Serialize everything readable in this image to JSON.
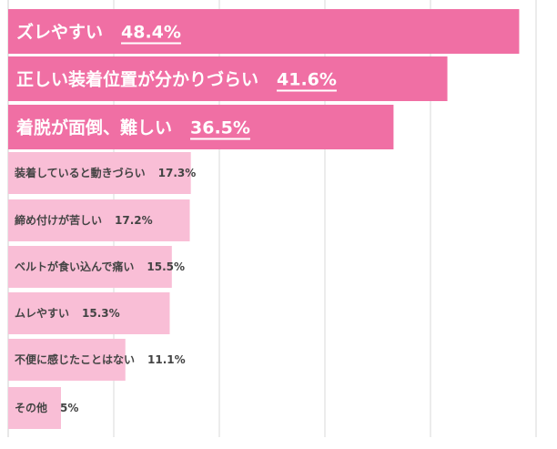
{
  "chart_data": {
    "type": "bar",
    "orientation": "horizontal",
    "categories": [
      "ズレやすい",
      "正しい装着位置が分かりづらい",
      "着脱が面倒、難しい",
      "装着していると動きづらい",
      "締め付けが苦しい",
      "ベルトが食い込んで痛い",
      "ムレやすい",
      "不便に感じたことはない",
      "その他"
    ],
    "values": [
      48.4,
      41.6,
      36.5,
      17.3,
      17.2,
      15.5,
      15.3,
      11.1,
      5
    ],
    "value_labels": [
      "48.4%",
      "41.6%",
      "36.5%",
      "17.3%",
      "17.2%",
      "15.5%",
      "15.3%",
      "11.1%",
      "5%"
    ],
    "highlight_top": 3,
    "xlim": [
      0,
      50
    ],
    "grid": true,
    "colors": {
      "highlight": "#f06fa4",
      "normal": "#f9bed6",
      "highlight_text": "#ffffff",
      "normal_text": "#444444"
    }
  }
}
